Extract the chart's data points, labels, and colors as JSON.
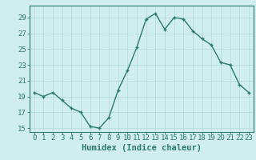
{
  "x": [
    0,
    1,
    2,
    3,
    4,
    5,
    6,
    7,
    8,
    9,
    10,
    11,
    12,
    13,
    14,
    15,
    16,
    17,
    18,
    19,
    20,
    21,
    22,
    23
  ],
  "y": [
    19.5,
    19.0,
    19.5,
    18.5,
    17.5,
    17.0,
    15.2,
    15.0,
    16.3,
    19.8,
    22.3,
    25.2,
    28.8,
    29.5,
    27.5,
    29.0,
    28.8,
    27.3,
    26.3,
    25.5,
    23.3,
    23.0,
    20.5,
    19.5
  ],
  "yticks": [
    15,
    17,
    19,
    21,
    23,
    25,
    27,
    29
  ],
  "xticks": [
    0,
    1,
    2,
    3,
    4,
    5,
    6,
    7,
    8,
    9,
    10,
    11,
    12,
    13,
    14,
    15,
    16,
    17,
    18,
    19,
    20,
    21,
    22,
    23
  ],
  "xlabel": "Humidex (Indice chaleur)",
  "ylim": [
    14.5,
    30.5
  ],
  "xlim": [
    -0.5,
    23.5
  ],
  "line_color": "#2d7a6e",
  "marker_color": "#2d7a6e",
  "bg_color": "#d0eeee",
  "grid_color": "#b8dcdc",
  "tick_color": "#2d7a6e",
  "label_color": "#2d7a6e",
  "xlabel_fontsize": 7.5,
  "tick_fontsize": 6.5,
  "line_width": 1.0,
  "marker_size": 3.5
}
